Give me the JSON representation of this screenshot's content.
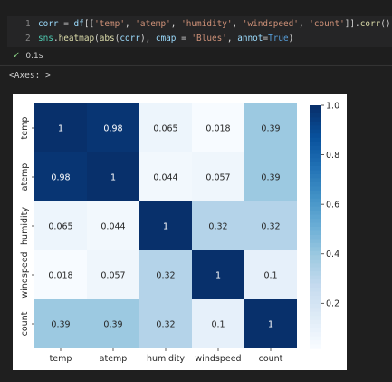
{
  "cell": {
    "lines": [
      {
        "num": "1",
        "tokens": [
          {
            "t": "corr",
            "c": "tk-var"
          },
          {
            "t": " = ",
            "c": "tk-op"
          },
          {
            "t": "df",
            "c": "tk-var"
          },
          {
            "t": "[[",
            "c": "tk-op"
          },
          {
            "t": "'temp'",
            "c": "tk-str"
          },
          {
            "t": ", ",
            "c": "tk-op"
          },
          {
            "t": "'atemp'",
            "c": "tk-str"
          },
          {
            "t": ", ",
            "c": "tk-op"
          },
          {
            "t": "'humidity'",
            "c": "tk-str"
          },
          {
            "t": ", ",
            "c": "tk-op"
          },
          {
            "t": "'windspeed'",
            "c": "tk-str"
          },
          {
            "t": ", ",
            "c": "tk-op"
          },
          {
            "t": "'count'",
            "c": "tk-str"
          },
          {
            "t": "]].",
            "c": "tk-op"
          },
          {
            "t": "corr",
            "c": "tk-fn"
          },
          {
            "t": "()",
            "c": "tk-op"
          }
        ]
      },
      {
        "num": "2",
        "tokens": [
          {
            "t": "sns",
            "c": "tk-cls"
          },
          {
            "t": ".",
            "c": "tk-op"
          },
          {
            "t": "heatmap",
            "c": "tk-fn"
          },
          {
            "t": "(",
            "c": "tk-op"
          },
          {
            "t": "abs",
            "c": "tk-fn"
          },
          {
            "t": "(",
            "c": "tk-op"
          },
          {
            "t": "corr",
            "c": "tk-var"
          },
          {
            "t": "), ",
            "c": "tk-op"
          },
          {
            "t": "cmap",
            "c": "tk-var"
          },
          {
            "t": " = ",
            "c": "tk-op"
          },
          {
            "t": "'Blues'",
            "c": "tk-str"
          },
          {
            "t": ", ",
            "c": "tk-op"
          },
          {
            "t": "annot",
            "c": "tk-var"
          },
          {
            "t": "=",
            "c": "tk-op"
          },
          {
            "t": "True",
            "c": "tk-kw"
          },
          {
            "t": ")",
            "c": "tk-op"
          }
        ]
      }
    ],
    "exec_time": "0.1s",
    "status_icon": "check-icon"
  },
  "output": {
    "axes_repr": "<Axes: >"
  },
  "chart_data": {
    "type": "heatmap",
    "x_labels": [
      "temp",
      "atemp",
      "humidity",
      "windspeed",
      "count"
    ],
    "y_labels": [
      "temp",
      "atemp",
      "humidity",
      "windspeed",
      "count"
    ],
    "values": [
      [
        1,
        0.98,
        0.065,
        0.018,
        0.39
      ],
      [
        0.98,
        1,
        0.044,
        0.057,
        0.39
      ],
      [
        0.065,
        0.044,
        1,
        0.32,
        0.32
      ],
      [
        0.018,
        0.057,
        0.32,
        1,
        0.1
      ],
      [
        0.39,
        0.39,
        0.32,
        0.1,
        1
      ]
    ],
    "annotations": [
      [
        "1",
        "0.98",
        "0.065",
        "0.018",
        "0.39"
      ],
      [
        "0.98",
        "1",
        "0.044",
        "0.057",
        "0.39"
      ],
      [
        "0.065",
        "0.044",
        "1",
        "0.32",
        "0.32"
      ],
      [
        "0.018",
        "0.057",
        "0.32",
        "1",
        "0.1"
      ],
      [
        "0.39",
        "0.39",
        "0.32",
        "0.1",
        "1"
      ]
    ],
    "colormap": "Blues",
    "vmin": 0.018,
    "vmax": 1.0,
    "colorbar_ticks": [
      1.0,
      0.8,
      0.6,
      0.4,
      0.2
    ],
    "colorbar_tick_labels": [
      "1.0",
      "0.8",
      "0.6",
      "0.4",
      "0.2"
    ]
  }
}
